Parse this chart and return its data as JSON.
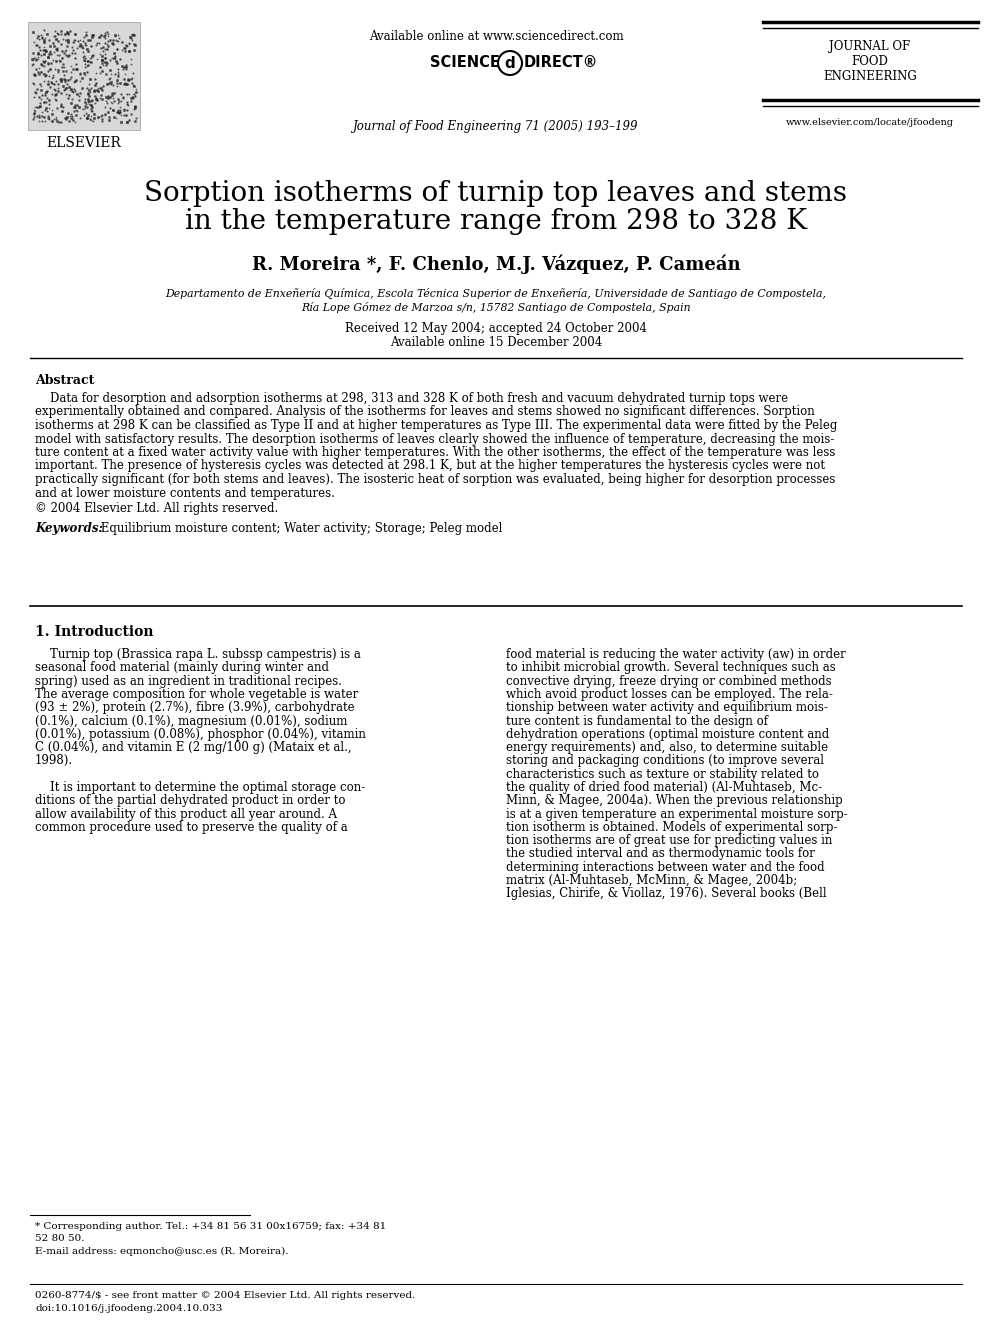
{
  "header_online": "Available online at www.sciencedirect.com",
  "sciencedirect_left": "SCIENCE",
  "sciencedirect_right": "DIRECT®",
  "journal_name": "Journal of Food Engineering 71 (2005) 193–199",
  "journal_abbrev_line1": "JOURNAL OF",
  "journal_abbrev_line2": "FOOD",
  "journal_abbrev_line3": "ENGINEERING",
  "journal_url": "www.elsevier.com/locate/jfoodeng",
  "elsevier_text": "ELSEVIER",
  "title_line1": "Sorption isotherms of turnip top leaves and stems",
  "title_line2": "in the temperature range from 298 to 328 K",
  "authors": "R. Moreira *, F. Chenlo, M.J. Vázquez, P. Cameán",
  "affiliation_line1": "Departamento de Enxeñería Química, Escola Técnica Superior de Enxeñería, Universidade de Santiago de Compostela,",
  "affiliation_line2": "Ría Lope Gómez de Marzoa s/n, 15782 Santiago de Compostela, Spain",
  "received": "Received 12 May 2004; accepted 24 October 2004",
  "available": "Available online 15 December 2004",
  "abstract_title": "Abstract",
  "abstract_line1": "    Data for desorption and adsorption isotherms at 298, 313 and 328 K of both fresh and vacuum dehydrated turnip tops were",
  "abstract_line2": "experimentally obtained and compared. Analysis of the isotherms for leaves and stems showed no significant differences. Sorption",
  "abstract_line3": "isotherms at 298 K can be classified as Type II and at higher temperatures as Type III. The experimental data were fitted by the Peleg",
  "abstract_line4": "model with satisfactory results. The desorption isotherms of leaves clearly showed the influence of temperature, decreasing the mois-",
  "abstract_line5": "ture content at a fixed water activity value with higher temperatures. With the other isotherms, the effect of the temperature was less",
  "abstract_line6": "important. The presence of hysteresis cycles was detected at 298.1 K, but at the higher temperatures the hysteresis cycles were not",
  "abstract_line7": "practically significant (for both stems and leaves). The isosteric heat of sorption was evaluated, being higher for desorption processes",
  "abstract_line8": "and at lower moisture contents and temperatures.",
  "copyright": "© 2004 Elsevier Ltd. All rights reserved.",
  "keywords_label": "Keywords:",
  "keywords_text": " Equilibrium moisture content; Water activity; Storage; Peleg model",
  "sec1_title": "1. Introduction",
  "col1_lines": [
    "    Turnip top (Brassica rapa L. subssp campestris) is a",
    "seasonal food material (mainly during winter and",
    "spring) used as an ingredient in traditional recipes.",
    "The average composition for whole vegetable is water",
    "(93 ± 2%), protein (2.7%), fibre (3.9%), carbohydrate",
    "(0.1%), calcium (0.1%), magnesium (0.01%), sodium",
    "(0.01%), potassium (0.08%), phosphor (0.04%), vitamin",
    "C (0.04%), and vitamin E (2 mg/100 g) (Mataix et al.,",
    "1998).",
    "",
    "    It is important to determine the optimal storage con-",
    "ditions of the partial dehydrated product in order to",
    "allow availability of this product all year around. A",
    "common procedure used to preserve the quality of a"
  ],
  "col2_lines": [
    "food material is reducing the water activity (aw) in order",
    "to inhibit microbial growth. Several techniques such as",
    "convective drying, freeze drying or combined methods",
    "which avoid product losses can be employed. The rela-",
    "tionship between water activity and equilibrium mois-",
    "ture content is fundamental to the design of",
    "dehydration operations (optimal moisture content and",
    "energy requirements) and, also, to determine suitable",
    "storing and packaging conditions (to improve several",
    "characteristics such as texture or stability related to",
    "the quality of dried food material) (Al-Muhtaseb, Mc-",
    "Minn, & Magee, 2004a). When the previous relationship",
    "is at a given temperature an experimental moisture sorp-",
    "tion isotherm is obtained. Models of experimental sorp-",
    "tion isotherms are of great use for predicting values in",
    "the studied interval and as thermodynamic tools for",
    "determining interactions between water and the food",
    "matrix (Al-Muhtaseb, McMinn, & Magee, 2004b;",
    "Iglesias, Chirife, & Viollaz, 1976). Several books (Bell"
  ],
  "footnote_line1": "* Corresponding author. Tel.: +34 81 56 31 00x16759; fax: +34 81",
  "footnote_line2": "52 80 50.",
  "footnote_email": "E-mail address: eqmoncho@usc.es (R. Moreira).",
  "footer_issn": "0260-8774/$ - see front matter © 2004 Elsevier Ltd. All rights reserved.",
  "footer_doi": "doi:10.1016/j.jfoodeng.2004.10.033"
}
